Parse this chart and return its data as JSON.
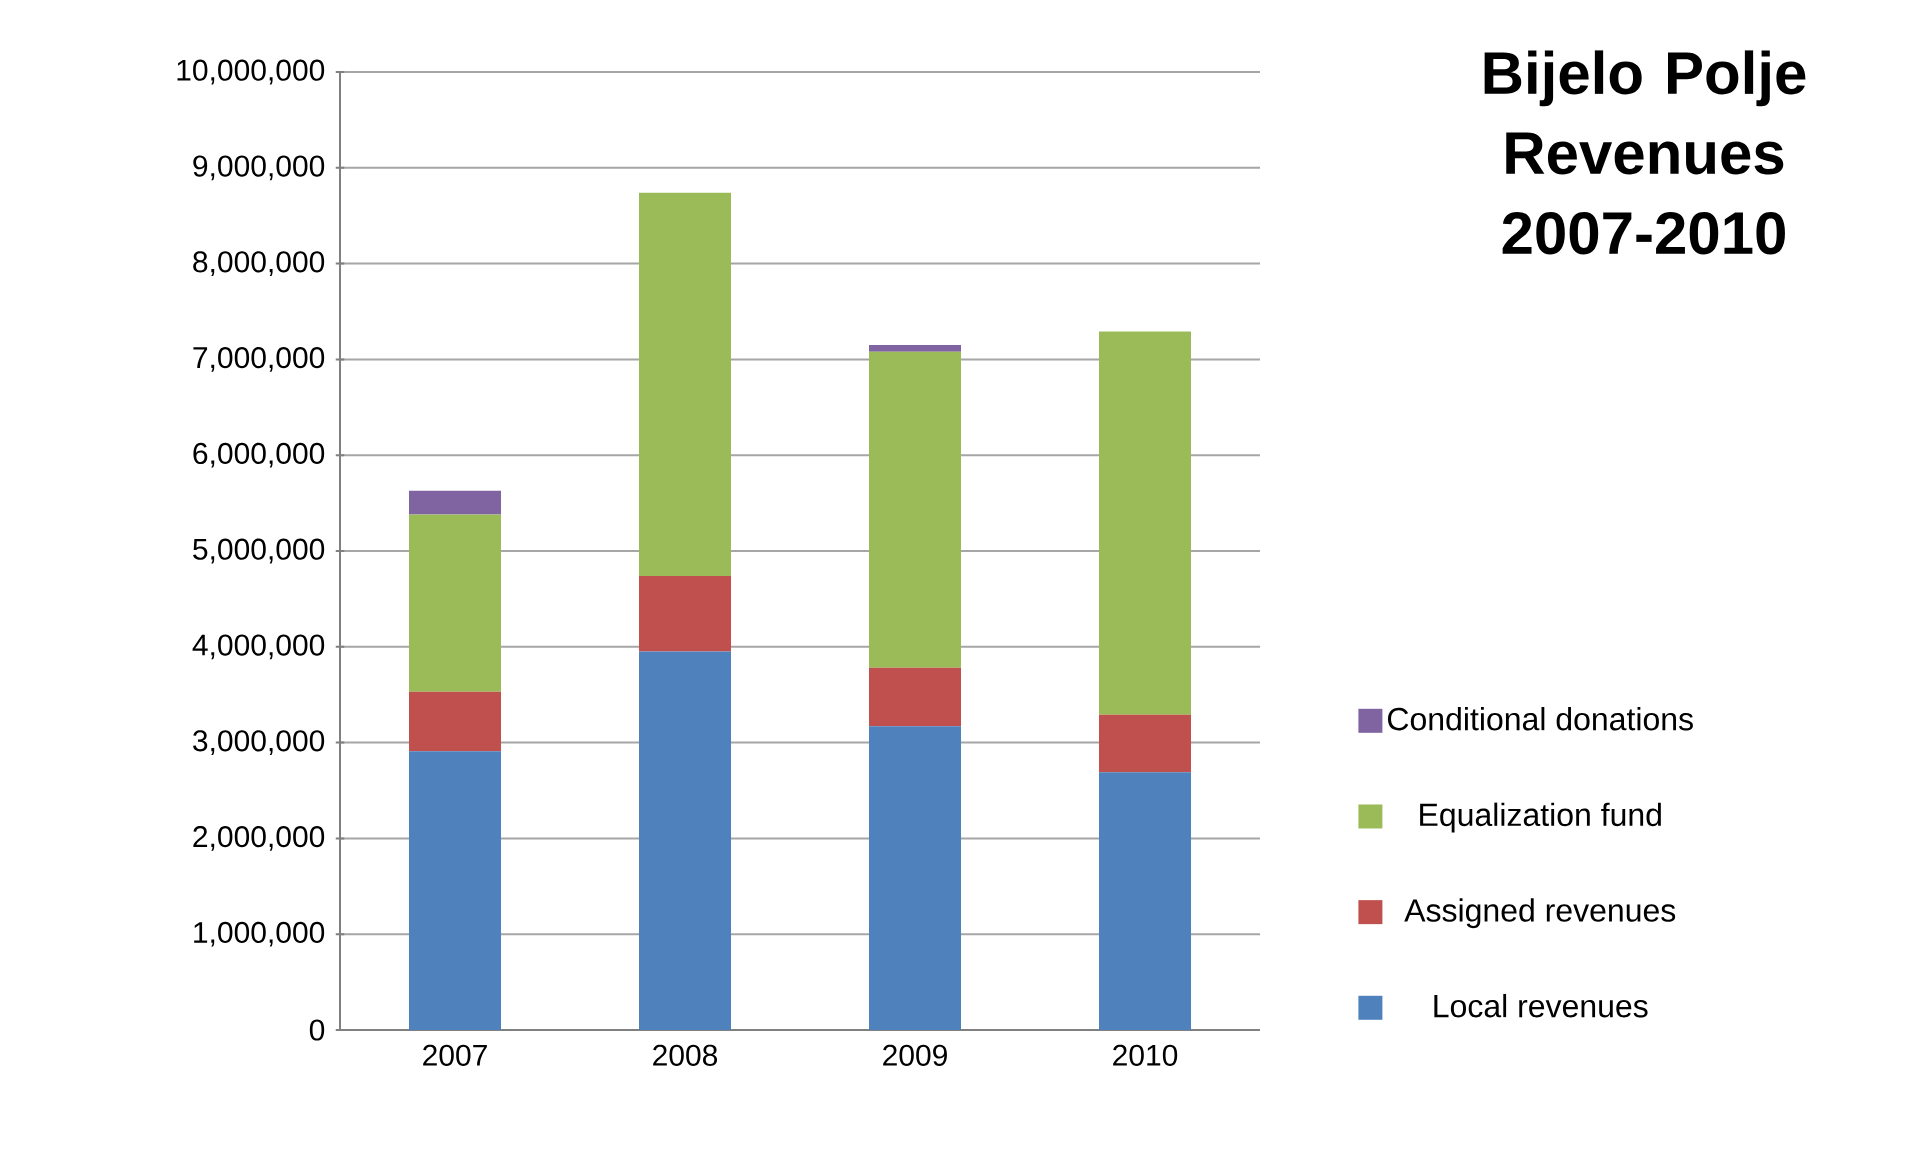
{
  "chart_data": {
    "type": "bar",
    "stacked": true,
    "title": "Bijelo Polje Revenues 2007-2010",
    "categories": [
      "2007",
      "2008",
      "2009",
      "2010"
    ],
    "series": [
      {
        "name": "Local revenues",
        "color": "#4f81bd",
        "values": [
          2910000,
          3950000,
          3170000,
          2690000
        ]
      },
      {
        "name": "Assigned revenues",
        "color": "#c0504d",
        "values": [
          620000,
          790000,
          610000,
          600000
        ]
      },
      {
        "name": "Equalization fund",
        "color": "#9bbb59",
        "values": [
          1850000,
          4000000,
          3300000,
          4000000
        ]
      },
      {
        "name": "Conditional donations",
        "color": "#8064a2",
        "values": [
          250000,
          0,
          70000,
          0
        ]
      }
    ],
    "ylim": [
      0,
      10000000
    ],
    "yticks": [
      {
        "value": 0,
        "label": "0"
      },
      {
        "value": 1000000,
        "label": "1,000,000"
      },
      {
        "value": 2000000,
        "label": "2,000,000"
      },
      {
        "value": 3000000,
        "label": "3,000,000"
      },
      {
        "value": 4000000,
        "label": "4,000,000"
      },
      {
        "value": 5000000,
        "label": "5,000,000"
      },
      {
        "value": 6000000,
        "label": "6,000,000"
      },
      {
        "value": 7000000,
        "label": "7,000,000"
      },
      {
        "value": 8000000,
        "label": "8,000,000"
      },
      {
        "value": 9000000,
        "label": "9,000,000"
      },
      {
        "value": 10000000,
        "label": "10,000,000"
      }
    ],
    "grid": "y",
    "legend": "right"
  }
}
